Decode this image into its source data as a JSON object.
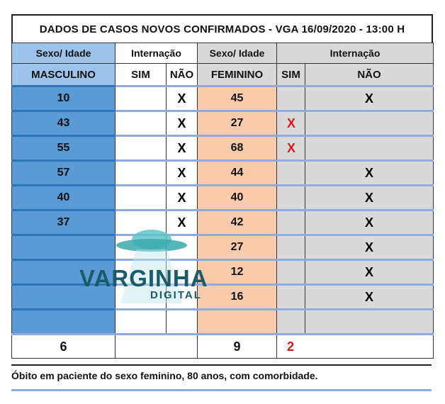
{
  "title": "DADOS DE CASOS NOVOS CONFIRMADOS - VGA  16/09/2020 - 13:00 H",
  "headers": {
    "sex_age": "Sexo/  Idade",
    "hospitalization": "Internação",
    "male": "MASCULINO",
    "female": "FEMININO",
    "yes": "SIM",
    "no": "NÃO"
  },
  "male_rows": [
    {
      "age": "10",
      "sim": "",
      "nao": "X"
    },
    {
      "age": "43",
      "sim": "",
      "nao": "X"
    },
    {
      "age": "55",
      "sim": "",
      "nao": "X"
    },
    {
      "age": "57",
      "sim": "",
      "nao": "X"
    },
    {
      "age": "40",
      "sim": "",
      "nao": "X"
    },
    {
      "age": "37",
      "sim": "",
      "nao": "X"
    },
    {
      "age": "",
      "sim": "",
      "nao": ""
    },
    {
      "age": "",
      "sim": "",
      "nao": ""
    },
    {
      "age": "",
      "sim": "",
      "nao": ""
    },
    {
      "age": "",
      "sim": "",
      "nao": ""
    }
  ],
  "female_rows": [
    {
      "age": "45",
      "sim": "",
      "nao": "X"
    },
    {
      "age": "27",
      "sim": "X",
      "nao": ""
    },
    {
      "age": "68",
      "sim": "X",
      "nao": ""
    },
    {
      "age": "44",
      "sim": "",
      "nao": "X"
    },
    {
      "age": "40",
      "sim": "",
      "nao": "X"
    },
    {
      "age": "42",
      "sim": "",
      "nao": "X"
    },
    {
      "age": "27",
      "sim": "",
      "nao": "X"
    },
    {
      "age": "12",
      "sim": "",
      "nao": "X"
    },
    {
      "age": "16",
      "sim": "",
      "nao": "X"
    },
    {
      "age": "",
      "sim": "",
      "nao": ""
    }
  ],
  "totals": {
    "male": "6",
    "female": "9",
    "female_hospitalized": "2"
  },
  "footnote": "Óbito em paciente do sexo feminino, 80 anos, com comorbidade.",
  "watermark": {
    "brand": "VARGINHA",
    "sub": "DIGITAL"
  },
  "colors": {
    "male_fill": "#5b9bd5",
    "female_fill": "#f8cbad",
    "grey_fill": "#d9d9d9",
    "mark_red": "#d61818",
    "brand": "#1a5a6a"
  }
}
